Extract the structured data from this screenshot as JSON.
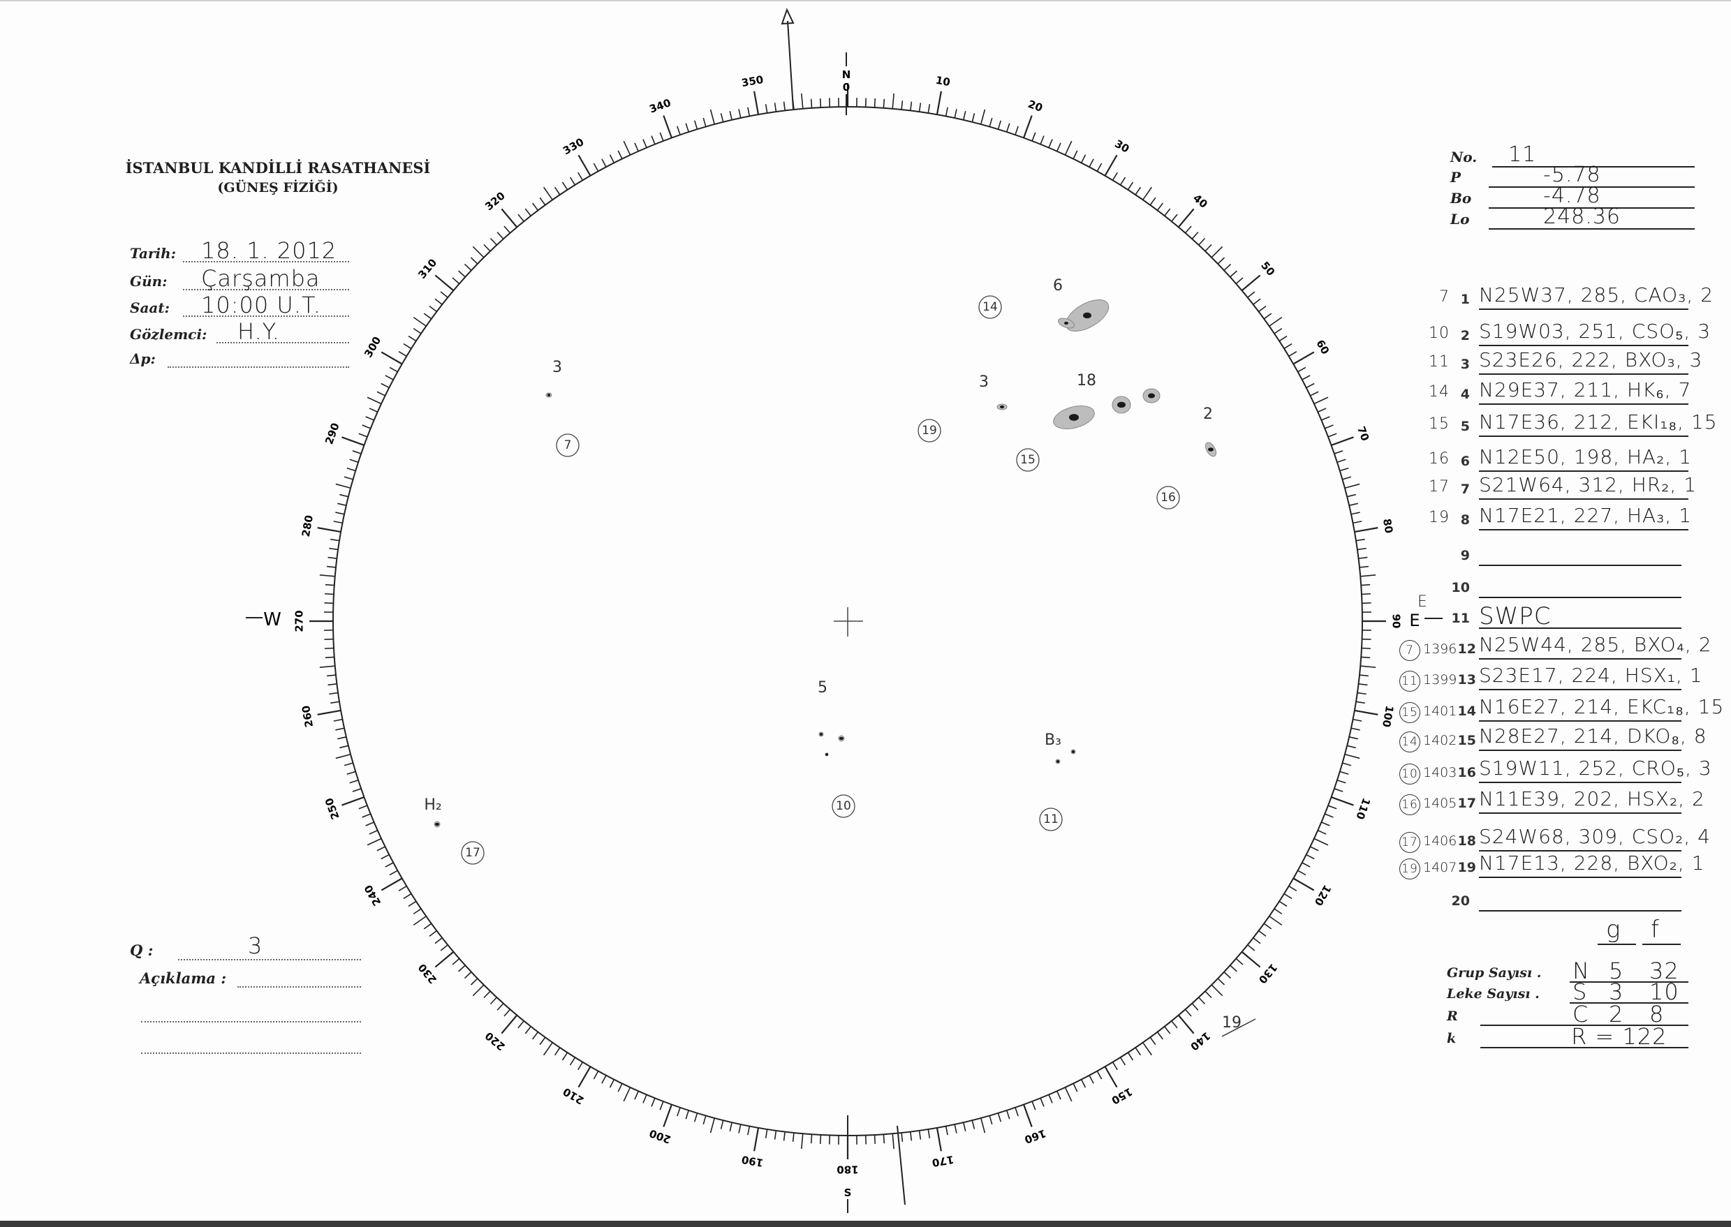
{
  "header": {
    "institution": "İSTANBUL KANDİLLİ RASATHANESİ",
    "department": "(GÜNEŞ FİZİĞİ)"
  },
  "form": {
    "fields": [
      {
        "label": "Tarih:",
        "value": "18. 1. 2012"
      },
      {
        "label": "Gün:",
        "value": "Çarşamba"
      },
      {
        "label": "Saat:",
        "value": "10:00 U.T."
      },
      {
        "label": "Gözlemci:",
        "value": "H.Y."
      },
      {
        "label": "Δp:",
        "value": ""
      }
    ]
  },
  "quality": {
    "label": "Q :",
    "value": "3"
  },
  "remarks": {
    "label": "Açıklama :",
    "value": ""
  },
  "ephemeris": [
    {
      "label": "No.",
      "value": "11"
    },
    {
      "label": "P",
      "value": "-5.78"
    },
    {
      "label": "Bo",
      "value": "-4.78"
    },
    {
      "label": "Lo",
      "value": "248.36"
    }
  ],
  "groups": [
    {
      "index": "1",
      "ref": "7",
      "text": "N25W37, 285, CAO₃, 2"
    },
    {
      "index": "2",
      "ref": "10",
      "text": "S19W03, 251, CSO₅, 3"
    },
    {
      "index": "3",
      "ref": "11",
      "text": "S23E26, 222, BXO₃, 3"
    },
    {
      "index": "4",
      "ref": "14",
      "text": "N29E37, 211, HK₆, 7"
    },
    {
      "index": "5",
      "ref": "15",
      "text": "N17E36, 212, EKI₁₈, 15"
    },
    {
      "index": "6",
      "ref": "16",
      "text": "N12E50, 198, HA₂, 1"
    },
    {
      "index": "7",
      "ref": "17",
      "text": "S21W64, 312, HR₂, 1"
    },
    {
      "index": "8",
      "ref": "19",
      "text": "N17E21, 227, HA₃, 1"
    },
    {
      "index": "9",
      "text": ""
    },
    {
      "index": "10",
      "text": ""
    },
    {
      "index": "11",
      "text": "SWPC",
      "side": "E"
    },
    {
      "index": "12",
      "circled": "7",
      "noaa": "1396",
      "text": "N25W44, 285, BXO₄, 2"
    },
    {
      "index": "13",
      "circled": "11",
      "noaa": "1399",
      "text": "S23E17, 224, HSX₁, 1"
    },
    {
      "index": "14",
      "circled": "15",
      "noaa": "1401",
      "text": "N16E27, 214, EKC₁₈, 15"
    },
    {
      "index": "15",
      "circled": "14",
      "noaa": "1402",
      "text": "N28E27, 214, DKO₈, 8"
    },
    {
      "index": "16",
      "circled": "10",
      "noaa": "1403",
      "text": "S19W11, 252, CRO₅, 3"
    },
    {
      "index": "17",
      "circled": "16",
      "noaa": "1405",
      "text": "N11E39, 202, HSX₂, 2"
    },
    {
      "index": "18",
      "circled": "17",
      "noaa": "1406",
      "text": "S24W68, 309, CSO₂, 4"
    },
    {
      "index": "19",
      "circled": "19",
      "noaa": "1407",
      "text": "N17E13, 228, BXO₂, 1"
    },
    {
      "index": "20",
      "text": ""
    }
  ],
  "totals": {
    "headers": [
      "g",
      "f"
    ],
    "rows": [
      {
        "label": "Grup Sayısı .",
        "hem": "N",
        "g": "5",
        "f": "32"
      },
      {
        "label": "Leke Sayısı .",
        "hem": "S",
        "g": "3",
        "f": "10"
      },
      {
        "label": "R",
        "hem": "C",
        "g": "2",
        "f": "8"
      },
      {
        "label": "k",
        "value": "R = 122"
      }
    ]
  },
  "disk": {
    "north": "N",
    "north_zero": "0",
    "south": "S",
    "west": "W",
    "east": "E",
    "scale_labels": [
      "0",
      "10",
      "20",
      "30",
      "40",
      "50",
      "60",
      "70",
      "80",
      "90",
      "100",
      "110",
      "120",
      "130",
      "140",
      "150",
      "160",
      "170",
      "180",
      "190",
      "200",
      "210",
      "220",
      "230",
      "240",
      "250",
      "260",
      "270",
      "280",
      "290",
      "300",
      "310",
      "320",
      "330",
      "340",
      "350"
    ],
    "annotations": [
      "6",
      "14",
      "3",
      "18",
      "2",
      "19",
      "15",
      "16",
      "3",
      "7",
      "5",
      "10",
      "B₃",
      "11",
      "H₂",
      "17",
      "19"
    ]
  }
}
